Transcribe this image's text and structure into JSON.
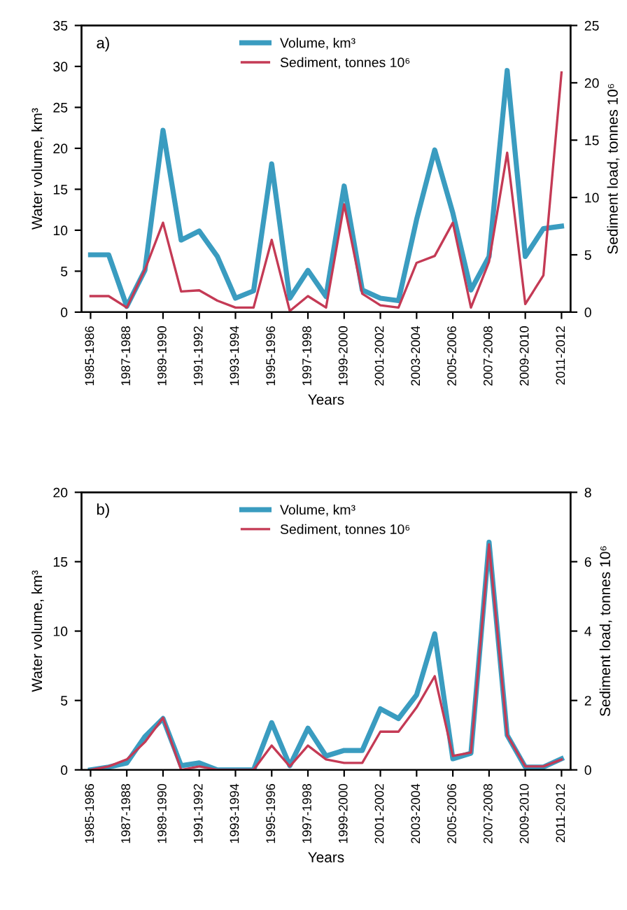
{
  "chart_data": [
    {
      "type": "line",
      "xlabel": "Years",
      "ylabel": "Water volume, km³",
      "y2label": "Sediment load, tonnes 10⁶",
      "annotations": [
        "a)"
      ],
      "categories": [
        "1985-1986",
        null,
        "1987-1988",
        null,
        "1989-1990",
        null,
        "1991-1992",
        null,
        "1993-1994",
        null,
        "1995-1996",
        null,
        "1997-1998",
        null,
        "1999-2000",
        null,
        "2001-2002",
        null,
        "2003-2004",
        null,
        "2005-2006",
        null,
        "2007-2008",
        null,
        "2009-2010",
        null,
        "2011-2012"
      ],
      "series": [
        {
          "name": "Volume, km³",
          "color": "#3a9cc0",
          "values": [
            7.0,
            7.0,
            0.7,
            5.1,
            22.2,
            8.8,
            9.9,
            6.8,
            1.7,
            2.6,
            18.1,
            1.7,
            5.1,
            1.9,
            15.4,
            2.7,
            1.7,
            1.4,
            11.3,
            19.8,
            12.1,
            2.7,
            6.8,
            29.5,
            6.8,
            10.2,
            10.5
          ]
        },
        {
          "name": "Sediment, tonnes 10⁶",
          "color": "#c43a55",
          "axis": "y2",
          "values": [
            1.4,
            1.4,
            0.4,
            3.7,
            7.8,
            1.8,
            1.9,
            1.0,
            0.4,
            0.4,
            6.3,
            0.1,
            1.4,
            0.4,
            9.4,
            1.6,
            0.6,
            0.4,
            4.3,
            4.9,
            7.8,
            0.4,
            4.4,
            13.9,
            0.7,
            3.2,
            20.9
          ]
        }
      ],
      "ylim": [
        0,
        35
      ],
      "yticks": [
        0,
        5,
        10,
        15,
        20,
        25,
        30,
        35
      ],
      "y2lim": [
        0,
        25
      ],
      "y2ticks": [
        0,
        5,
        10,
        15,
        20,
        25
      ],
      "legend": "top"
    },
    {
      "type": "line",
      "xlabel": "Years",
      "ylabel": "Water volume, km³",
      "y2label": "Sediment load, tonnes 10⁶",
      "annotations": [
        "b)"
      ],
      "categories": [
        "1985-1986",
        null,
        "1987-1988",
        null,
        "1989-1990",
        null,
        "1991-1992",
        null,
        "1993-1994",
        null,
        "1995-1996",
        null,
        "1997-1998",
        null,
        "1999-2000",
        null,
        "2001-2002",
        null,
        "2003-2004",
        null,
        "2005-2006",
        null,
        "2007-2008",
        null,
        "2009-2010",
        null,
        "2011-2012"
      ],
      "series": [
        {
          "name": "Volume, km³",
          "color": "#3a9cc0",
          "values": [
            0,
            0.2,
            0.5,
            2.4,
            3.7,
            0.3,
            0.5,
            0,
            0,
            0,
            3.4,
            0.3,
            3.0,
            1.0,
            1.4,
            1.4,
            4.4,
            3.7,
            5.4,
            9.8,
            0.8,
            1.2,
            16.4,
            2.5,
            0.2,
            0.2,
            0.8
          ]
        },
        {
          "name": "Sediment, tonnes 10⁶",
          "color": "#c43a55",
          "axis": "y2",
          "values": [
            0,
            0.1,
            0.3,
            0.8,
            1.5,
            0,
            0.1,
            0,
            0,
            0,
            0.7,
            0.1,
            0.7,
            0.3,
            0.2,
            0.2,
            1.1,
            1.1,
            1.8,
            2.7,
            0.4,
            0.5,
            6.5,
            1.0,
            0.1,
            0.1,
            0.3
          ]
        }
      ],
      "ylim": [
        0,
        20
      ],
      "yticks": [
        0,
        5,
        10,
        15,
        20
      ],
      "y2lim": [
        0,
        8
      ],
      "y2ticks": [
        0,
        2,
        4,
        6,
        8
      ],
      "legend": "top"
    }
  ]
}
